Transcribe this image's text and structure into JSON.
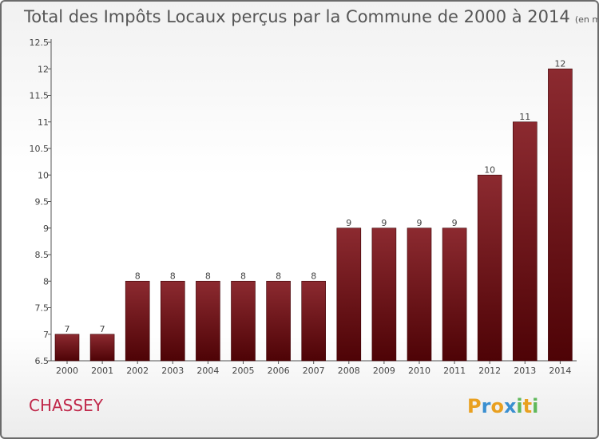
{
  "chart_data": {
    "type": "bar",
    "title": "Total des Impôts Locaux perçus par la Commune de 2000 à 2014",
    "subtitle": "(en milliers d'€)",
    "categories": [
      "2000",
      "2001",
      "2002",
      "2003",
      "2004",
      "2005",
      "2006",
      "2007",
      "2008",
      "2009",
      "2010",
      "2011",
      "2012",
      "2013",
      "2014"
    ],
    "values": [
      7,
      7,
      8,
      8,
      8,
      8,
      8,
      8,
      9,
      9,
      9,
      9,
      10,
      11,
      12
    ],
    "ylim": [
      6.5,
      12.5
    ],
    "yticks": [
      "6.5",
      "7",
      "7.5",
      "8",
      "8.5",
      "9",
      "9.5",
      "10",
      "10.5",
      "11",
      "11.5",
      "12",
      "12.5"
    ],
    "xlabel": "",
    "ylabel": "",
    "bar_color": "#7a1a1e"
  },
  "commune": "CHASSEY",
  "brand": {
    "letters": [
      "P",
      "r",
      "o",
      "x",
      "i",
      "t",
      "i"
    ],
    "colors": [
      "#e9a020",
      "#3a8fd0",
      "#e9a020",
      "#3a8fd0",
      "#5fb85a",
      "#e9a020",
      "#5fb85a"
    ]
  }
}
